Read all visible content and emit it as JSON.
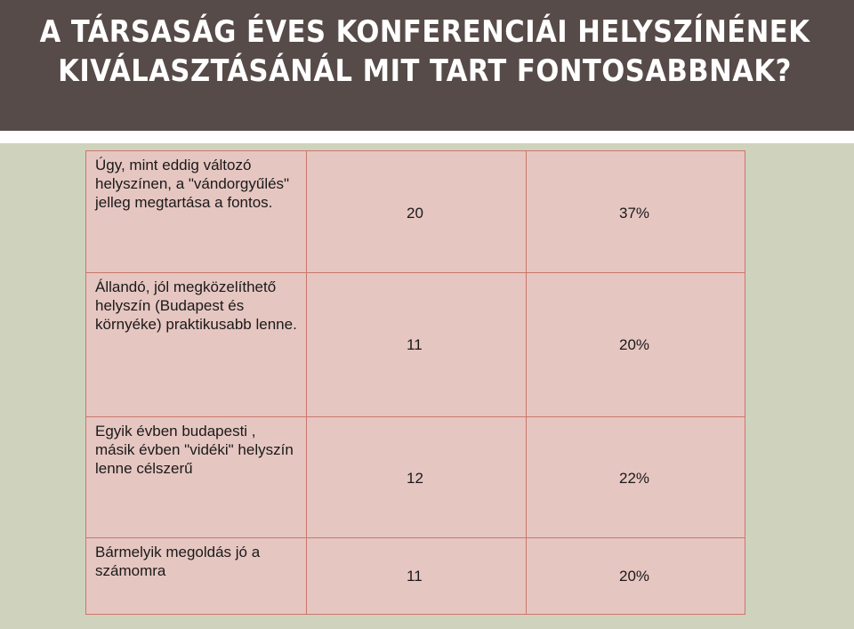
{
  "slide": {
    "title": "A TÁRSASÁG ÉVES KONFERENCIÁI HELYSZÍNÉNEK KIVÁLASZTÁSÁNÁL MIT TART FONTOSABBNAK?"
  },
  "table": {
    "rows": [
      {
        "label": "Úgy, mint eddig változó helyszínen, a \"vándorgyűlés\" jelleg megtartása a fontos.",
        "count": "20",
        "percent": "37%"
      },
      {
        "label": "Állandó, jól megközelíthető helyszín (Budapest és környéke) praktikusabb lenne.",
        "count": "11",
        "percent": "20%"
      },
      {
        "label": "Egyik évben budapesti , másik évben \"vidéki\" helyszín lenne célszerű",
        "count": "12",
        "percent": "22%"
      },
      {
        "label": "Bármelyik megoldás jó a számomra",
        "count": "11",
        "percent": "20%"
      }
    ]
  },
  "chart_data": {
    "type": "table",
    "columns": [
      "",
      "",
      ""
    ],
    "rows": [
      [
        "Úgy, mint eddig változó helyszínen, a \"vándorgyűlés\" jelleg megtartása a fontos.",
        20,
        "37%"
      ],
      [
        "Állandó, jól megközelíthető helyszín (Budapest és környéke) praktikusabb lenne.",
        11,
        "20%"
      ],
      [
        "Egyik évben budapesti , másik évben \"vidéki\" helyszín lenne célszerű",
        12,
        "22%"
      ],
      [
        "Bármelyik megoldás jó a számomra",
        11,
        "20%"
      ]
    ]
  },
  "colors": {
    "header_background": "#564b48",
    "page_background": "#cfd3bd",
    "cell_background": "#e6c6c1",
    "cell_border": "#c9786c"
  }
}
